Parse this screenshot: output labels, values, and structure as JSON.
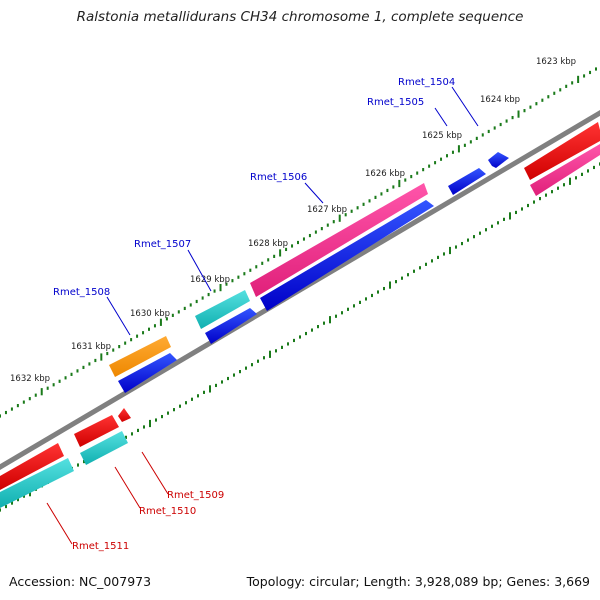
{
  "title": "Ralstonia metallidurans CH34 chromosome 1, complete sequence",
  "footer": {
    "accession": "Accession: NC_007973",
    "summary": "Topology: circular; Length: 3,928,089 bp; Genes: 3,669"
  },
  "colors": {
    "backbone": "#808080",
    "tick": "#1a7a1a",
    "forward_label": "#0000cc",
    "reverse_label": "#cc0000",
    "tick_label": "#222222"
  },
  "scale_labels": [
    "1623 kbp",
    "1624 kbp",
    "1625 kbp",
    "1626 kbp",
    "1627 kbp",
    "1628 kbp",
    "1629 kbp",
    "1630 kbp",
    "1631 kbp",
    "1632 kbp"
  ],
  "genes": [
    {
      "label": "Rmet_1504",
      "strand": "forward"
    },
    {
      "label": "Rmet_1505",
      "strand": "forward"
    },
    {
      "label": "Rmet_1506",
      "strand": "forward"
    },
    {
      "label": "Rmet_1507",
      "strand": "forward"
    },
    {
      "label": "Rmet_1508",
      "strand": "forward"
    },
    {
      "label": "Rmet_1509",
      "strand": "reverse"
    },
    {
      "label": "Rmet_1510",
      "strand": "reverse"
    },
    {
      "label": "Rmet_1511",
      "strand": "reverse"
    }
  ]
}
